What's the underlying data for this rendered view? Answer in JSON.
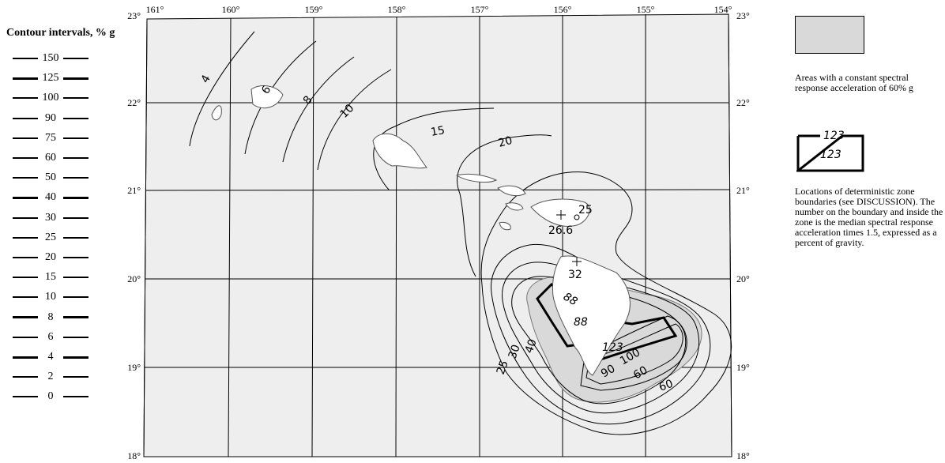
{
  "legend": {
    "title": "Contour intervals, % g",
    "intervals": [
      "150",
      "125",
      "100",
      "90",
      "75",
      "60",
      "50",
      "40",
      "30",
      "25",
      "20",
      "15",
      "10",
      "8",
      "6",
      "4",
      "2",
      "0"
    ],
    "thick_intervals": [
      "125",
      "40",
      "8",
      "4"
    ]
  },
  "right_legend": {
    "shaded_caption": "Areas with a constant spectral response acceleration of 60% g",
    "zone_sample_top": "123",
    "zone_sample_inner": "123",
    "zone_caption": "Locations of deterministic zone boundaries (see DISCUSSION). The number on the boundary and inside the zone is the median spectral response acceleration times 1.5, expressed as a percent of gravity.",
    "shade_color": "#d9d9d9"
  },
  "map": {
    "background_color": "#eeeeee",
    "top_longitudes": [
      "161°",
      "160°",
      "159°",
      "158°",
      "157°",
      "156°",
      "155°",
      "154°"
    ],
    "left_latitudes": [
      "23°",
      "22°",
      "21°",
      "20°",
      "19°",
      "18°"
    ],
    "right_latitudes": [
      "23°",
      "22°",
      "21°",
      "20°",
      "19°",
      "18°"
    ],
    "contour_labels": [
      "4",
      "6",
      "8",
      "10",
      "15",
      "20",
      "25",
      "30",
      "40",
      "25",
      "60",
      "60",
      "90",
      "100",
      "123",
      "88",
      "88"
    ],
    "point_labels": [
      "26.6",
      "25",
      "32"
    ]
  }
}
